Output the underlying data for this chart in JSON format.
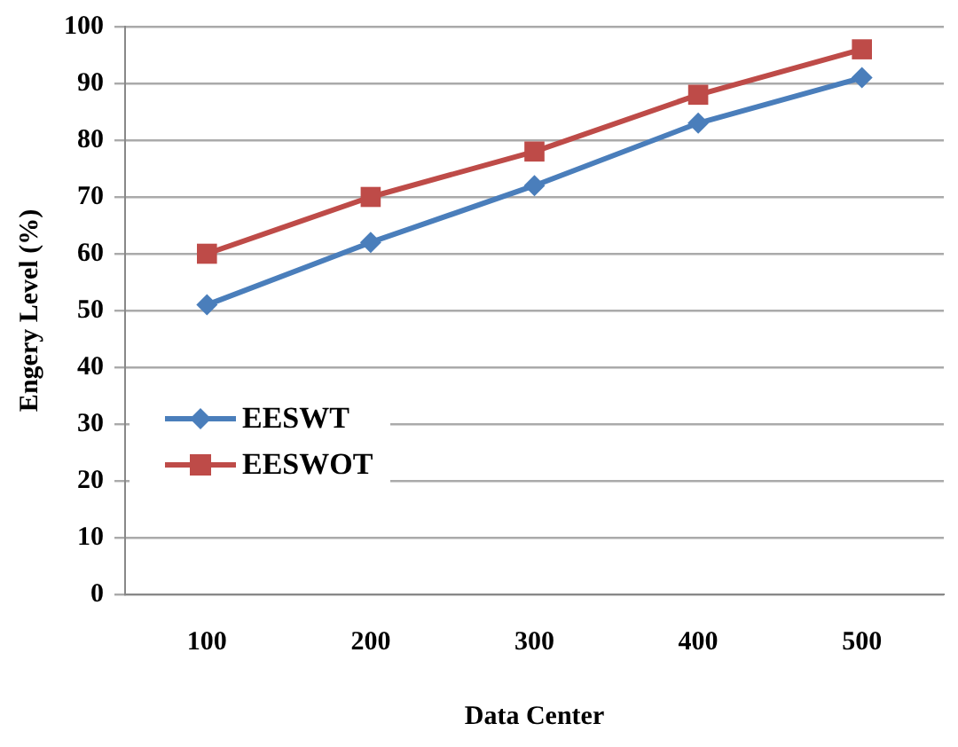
{
  "chart_data": {
    "type": "line",
    "xlabel": "Data Center",
    "ylabel": "Engery Level (%)",
    "categories": [
      "100",
      "200",
      "300",
      "400",
      "500"
    ],
    "series": [
      {
        "name": "EESWT",
        "color": "#4a7ebb",
        "marker": "diamond",
        "values": [
          51,
          62,
          72,
          83,
          91
        ]
      },
      {
        "name": "EESWOT",
        "color": "#be4b48",
        "marker": "square",
        "values": [
          60,
          70,
          78,
          88,
          96
        ]
      }
    ],
    "ylim": [
      0,
      100
    ],
    "yticks": [
      0,
      10,
      20,
      30,
      40,
      50,
      60,
      70,
      80,
      90,
      100
    ],
    "grid": "y",
    "legend": "bottom left",
    "line_style": "solid"
  }
}
